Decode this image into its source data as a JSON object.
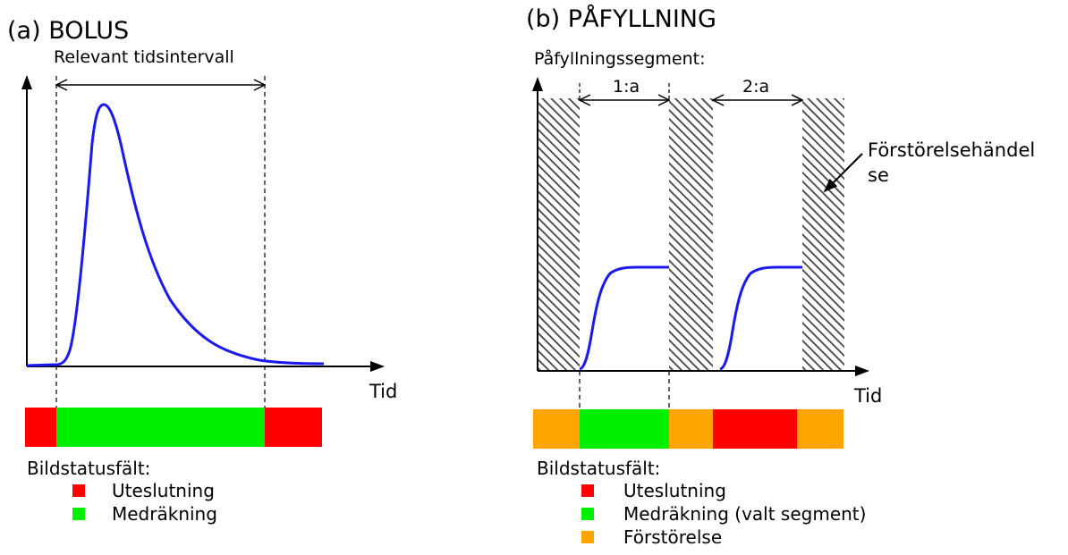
{
  "panel_a": {
    "title": "(a) BOLUS",
    "interval_label": "Relevant tidsintervall",
    "x_label": "Tid",
    "status_label": "Bildstatusfält:",
    "legend": [
      {
        "color": "#ff0000",
        "label": "Uteslutning"
      },
      {
        "color": "#00ee00",
        "label": "Medräkning"
      }
    ]
  },
  "panel_b": {
    "title": "(b) PÅFYLLNING",
    "segment_label": "Påfyllningssegment:",
    "segment_1": "1:a",
    "segment_2": "2:a",
    "destruction_label_line1": "Förstörelsehändel",
    "destruction_label_line2": "se",
    "x_label": "Tid",
    "status_label": "Bildstatusfält:",
    "legend": [
      {
        "color": "#ff0000",
        "label": "Uteslutning"
      },
      {
        "color": "#00ee00",
        "label": "Medräkning (valt segment)"
      },
      {
        "color": "#ffa500",
        "label": "Förstörelse"
      }
    ]
  },
  "colors": {
    "exclusion": "#ff0000",
    "inclusion": "#00ee00",
    "destruction": "#ffa500",
    "curve": "#1a1aee"
  }
}
